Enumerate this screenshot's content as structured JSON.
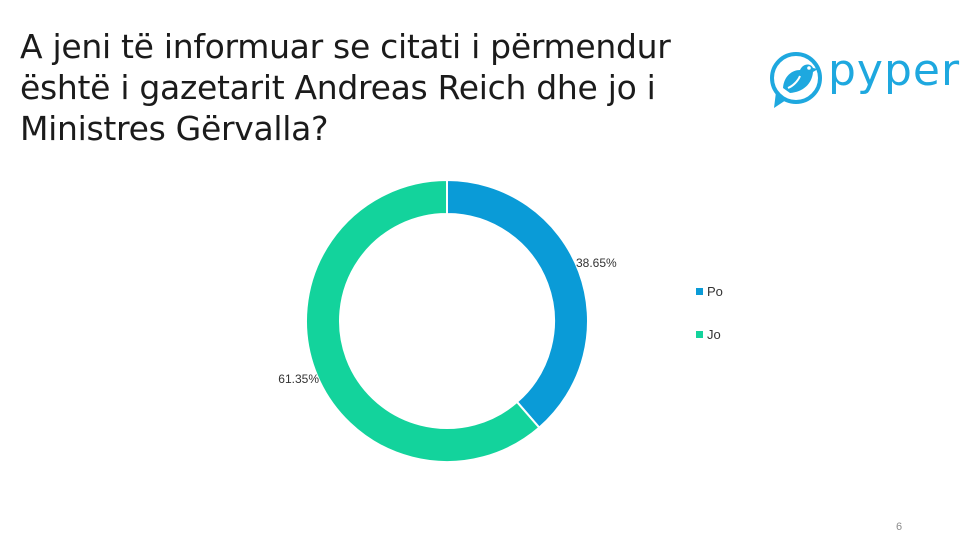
{
  "slide": {
    "title": "A jeni të informuar se citati i përmendur është i gazetarit Andreas Reich dhe jo i Ministres Gërvalla?",
    "page_number": "6"
  },
  "logo": {
    "text": "pyper",
    "color": "#1ea8df",
    "icon": "bird-icon"
  },
  "chart_data": {
    "type": "pie",
    "variant": "doughnut",
    "title": "",
    "categories": [
      "Po",
      "Jo"
    ],
    "values": [
      38.65,
      61.35
    ],
    "data_labels": [
      "38.65%",
      "61.35%"
    ],
    "colors": [
      "#0a9bd7",
      "#13d39c"
    ],
    "legend": {
      "position": "right",
      "entries": [
        "Po",
        "Jo"
      ]
    }
  }
}
